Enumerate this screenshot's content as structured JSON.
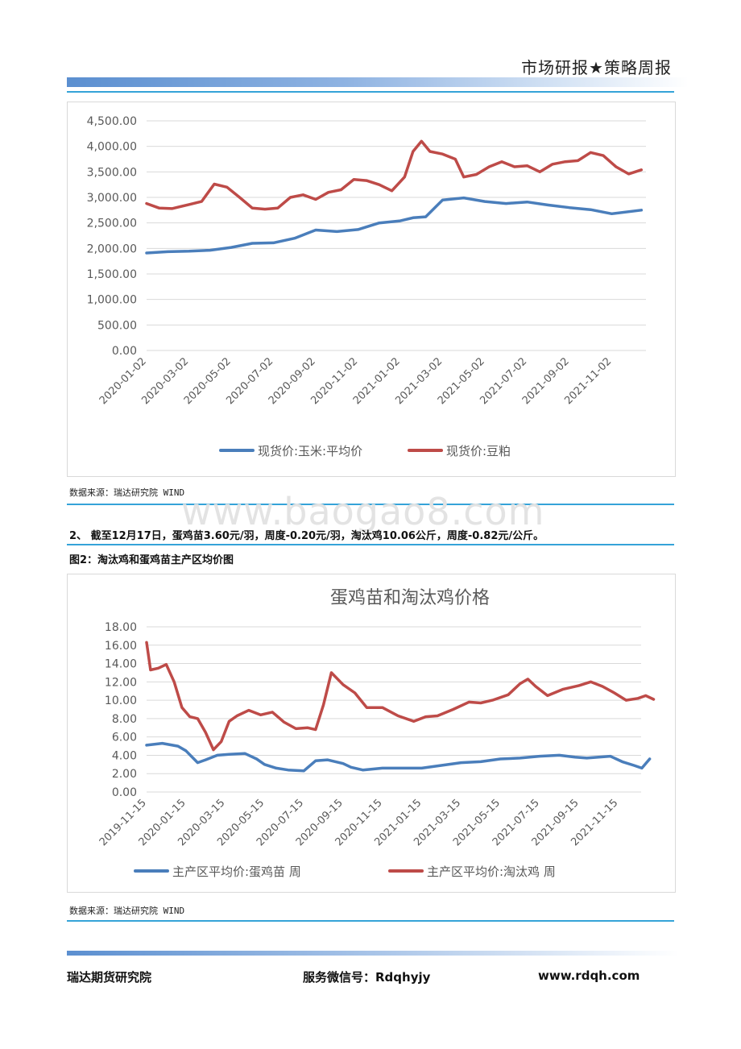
{
  "header": {
    "title": "市场研报★策略周报"
  },
  "chart1": {
    "source": "数据来源：瑞达研究院 WIND"
  },
  "paragraph": {
    "text": "2、 截至12月17日，蛋鸡苗3.60元/羽，周度-0.20元/羽，淘汰鸡10.06公斤，周度-0.82元/公斤。"
  },
  "chart2": {
    "caption": "图2：淘汰鸡和蛋鸡苗主产区均价图",
    "source": "数据来源：瑞达研究院 WIND"
  },
  "watermark": "www.baogao8.com",
  "footer": {
    "left": "瑞达期货研究院",
    "center": "服务微信号：Rdqhyjy",
    "right": "www.rdqh.com"
  },
  "chart_data": [
    {
      "type": "line",
      "title": "",
      "ylim": [
        0,
        4500
      ],
      "yticks": [
        "4,500.00",
        "4,000.00",
        "3,500.00",
        "3,000.00",
        "2,500.00",
        "2,000.00",
        "1,500.00",
        "1,000.00",
        "500.00",
        "0.00"
      ],
      "xticks": [
        "2020-01-02",
        "2020-03-02",
        "2020-05-02",
        "2020-07-02",
        "2020-09-02",
        "2020-11-02",
        "2021-01-02",
        "2021-03-02",
        "2021-05-02",
        "2021-07-02",
        "2021-09-02",
        "2021-11-02"
      ],
      "legend_position": "bottom",
      "grid": true,
      "series": [
        {
          "name": "现货价:玉米:平均价",
          "color": "#4a7ebb",
          "x": [
            0,
            0.5,
            1,
            1.5,
            2,
            2.5,
            3,
            3.5,
            4,
            4.5,
            5,
            5.5,
            6,
            6.3,
            6.6,
            7,
            7.5,
            8,
            8.5,
            9,
            9.5,
            10,
            10.5,
            11,
            11.7
          ],
          "values": [
            1910,
            1935,
            1945,
            1965,
            2020,
            2100,
            2110,
            2200,
            2360,
            2330,
            2370,
            2500,
            2540,
            2600,
            2620,
            2950,
            2990,
            2920,
            2880,
            2910,
            2850,
            2800,
            2760,
            2680,
            2750
          ]
        },
        {
          "name": "现货价:豆粕",
          "color": "#be4b48",
          "x": [
            0,
            0.3,
            0.6,
            1,
            1.3,
            1.6,
            1.9,
            2.2,
            2.5,
            2.8,
            3.1,
            3.4,
            3.7,
            4,
            4.3,
            4.6,
            4.9,
            5.2,
            5.5,
            5.8,
            6.1,
            6.3,
            6.5,
            6.7,
            7,
            7.3,
            7.5,
            7.8,
            8.1,
            8.4,
            8.7,
            9,
            9.3,
            9.6,
            9.9,
            10.2,
            10.5,
            10.8,
            11.1,
            11.4,
            11.7
          ],
          "values": [
            2880,
            2790,
            2780,
            2860,
            2920,
            3260,
            3200,
            3000,
            2790,
            2770,
            2790,
            3000,
            3050,
            2960,
            3100,
            3150,
            3350,
            3330,
            3250,
            3130,
            3400,
            3900,
            4100,
            3900,
            3850,
            3750,
            3400,
            3450,
            3600,
            3700,
            3600,
            3620,
            3500,
            3650,
            3700,
            3720,
            3880,
            3820,
            3600,
            3460,
            3540
          ]
        }
      ]
    },
    {
      "type": "line",
      "title": "蛋鸡苗和淘汰鸡价格",
      "ylim": [
        0,
        18
      ],
      "yticks": [
        "18.00",
        "16.00",
        "14.00",
        "12.00",
        "10.00",
        "8.00",
        "6.00",
        "4.00",
        "2.00",
        "0.00"
      ],
      "xticks": [
        "2019-11-15",
        "2020-01-15",
        "2020-03-15",
        "2020-05-15",
        "2020-07-15",
        "2020-09-15",
        "2020-11-15",
        "2021-01-15",
        "2021-03-15",
        "2021-05-15",
        "2021-07-15",
        "2021-09-15",
        "2021-11-15"
      ],
      "legend_position": "bottom",
      "grid": true,
      "series": [
        {
          "name": "主产区平均价:蛋鸡苗 周",
          "color": "#4a7ebb",
          "x": [
            0,
            0.4,
            0.8,
            1.0,
            1.3,
            1.5,
            1.8,
            2.1,
            2.5,
            2.8,
            3.0,
            3.3,
            3.6,
            4.0,
            4.3,
            4.6,
            5.0,
            5.2,
            5.5,
            6.0,
            6.5,
            7.0,
            7.5,
            8.0,
            8.5,
            9.0,
            9.5,
            10.0,
            10.5,
            10.9,
            11.2,
            11.5,
            11.8,
            12.1,
            12.4,
            12.6,
            12.8
          ],
          "values": [
            5.1,
            5.3,
            5.0,
            4.5,
            3.2,
            3.5,
            4.0,
            4.1,
            4.2,
            3.6,
            3.0,
            2.6,
            2.4,
            2.3,
            3.4,
            3.5,
            3.1,
            2.7,
            2.4,
            2.6,
            2.6,
            2.6,
            2.9,
            3.2,
            3.3,
            3.6,
            3.7,
            3.9,
            4.0,
            3.8,
            3.7,
            3.8,
            3.9,
            3.3,
            2.9,
            2.6,
            3.6
          ]
        },
        {
          "name": "主产区平均价:淘汰鸡 周",
          "color": "#be4b48",
          "x": [
            0,
            0.1,
            0.3,
            0.5,
            0.7,
            0.9,
            1.1,
            1.3,
            1.5,
            1.7,
            1.9,
            2.1,
            2.3,
            2.6,
            2.9,
            3.2,
            3.5,
            3.8,
            4.1,
            4.3,
            4.5,
            4.7,
            5.0,
            5.3,
            5.6,
            6.0,
            6.4,
            6.8,
            7.1,
            7.4,
            7.8,
            8.2,
            8.5,
            8.8,
            9.2,
            9.5,
            9.7,
            9.9,
            10.2,
            10.6,
            11.0,
            11.3,
            11.6,
            11.9,
            12.2,
            12.5,
            12.7,
            12.9
          ],
          "values": [
            16.3,
            13.3,
            13.5,
            13.9,
            12.0,
            9.2,
            8.2,
            8.0,
            6.5,
            4.6,
            5.5,
            7.7,
            8.3,
            8.9,
            8.4,
            8.7,
            7.6,
            6.9,
            7.0,
            6.8,
            9.5,
            13.0,
            11.7,
            10.8,
            9.2,
            9.2,
            8.3,
            7.7,
            8.2,
            8.3,
            9.0,
            9.8,
            9.7,
            10.0,
            10.6,
            11.8,
            12.3,
            11.5,
            10.5,
            11.2,
            11.6,
            12.0,
            11.5,
            10.8,
            10.0,
            10.2,
            10.5,
            10.1
          ]
        }
      ]
    }
  ]
}
